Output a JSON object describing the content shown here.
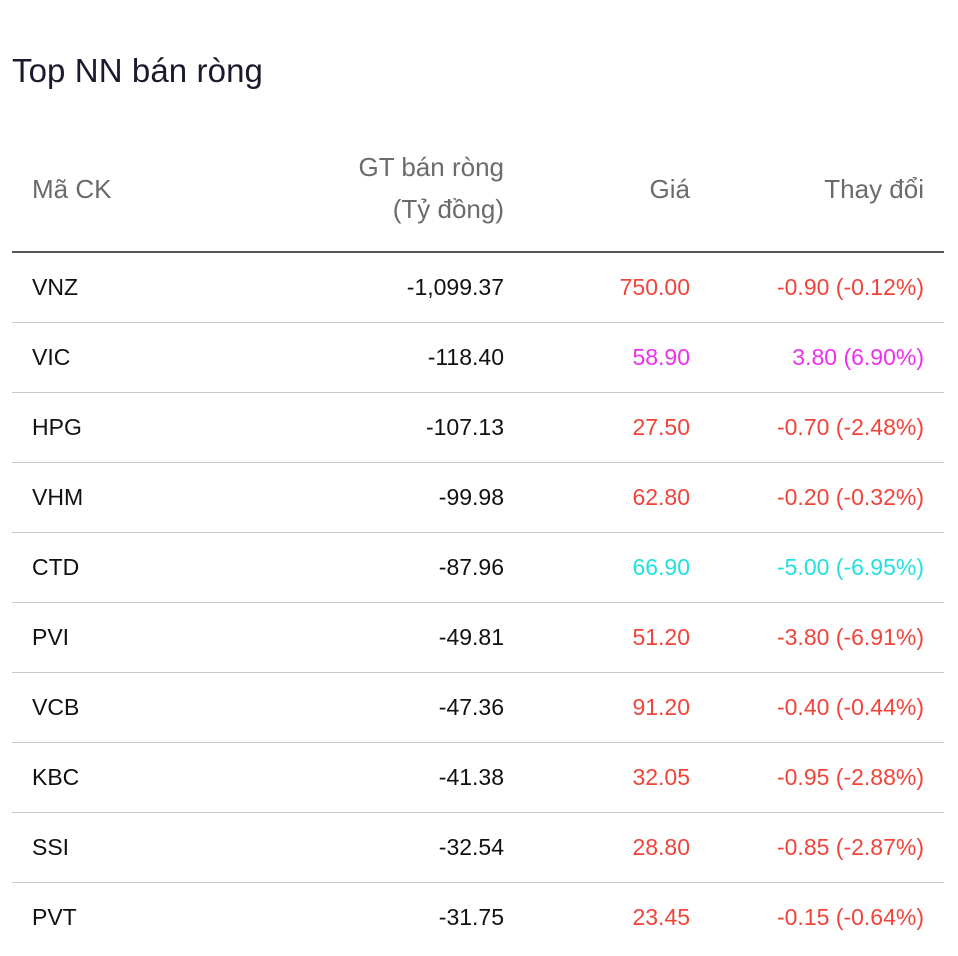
{
  "title": "Top NN bán ròng",
  "columns": {
    "code": "Mã CK",
    "value_line1": "GT bán ròng",
    "value_line2": "(Tỷ đồng)",
    "price": "Giá",
    "change": "Thay đổi"
  },
  "colors": {
    "down": "#f0443a",
    "ceiling": "#ee30ee",
    "floor": "#22e0e0"
  },
  "rows": [
    {
      "code": "VNZ",
      "value": "-1,099.37",
      "price": "750.00",
      "change": "-0.90 (-0.12%)",
      "color": "#f0443a"
    },
    {
      "code": "VIC",
      "value": "-118.40",
      "price": "58.90",
      "change": "3.80 (6.90%)",
      "color": "#ee30ee"
    },
    {
      "code": "HPG",
      "value": "-107.13",
      "price": "27.50",
      "change": "-0.70 (-2.48%)",
      "color": "#f0443a"
    },
    {
      "code": "VHM",
      "value": "-99.98",
      "price": "62.80",
      "change": "-0.20 (-0.32%)",
      "color": "#f0443a"
    },
    {
      "code": "CTD",
      "value": "-87.96",
      "price": "66.90",
      "change": "-5.00 (-6.95%)",
      "color": "#22e0e0"
    },
    {
      "code": "PVI",
      "value": "-49.81",
      "price": "51.20",
      "change": "-3.80 (-6.91%)",
      "color": "#f0443a"
    },
    {
      "code": "VCB",
      "value": "-47.36",
      "price": "91.20",
      "change": "-0.40 (-0.44%)",
      "color": "#f0443a"
    },
    {
      "code": "KBC",
      "value": "-41.38",
      "price": "32.05",
      "change": "-0.95 (-2.88%)",
      "color": "#f0443a"
    },
    {
      "code": "SSI",
      "value": "-32.54",
      "price": "28.80",
      "change": "-0.85 (-2.87%)",
      "color": "#f0443a"
    },
    {
      "code": "PVT",
      "value": "-31.75",
      "price": "23.45",
      "change": "-0.15 (-0.64%)",
      "color": "#f0443a"
    }
  ]
}
